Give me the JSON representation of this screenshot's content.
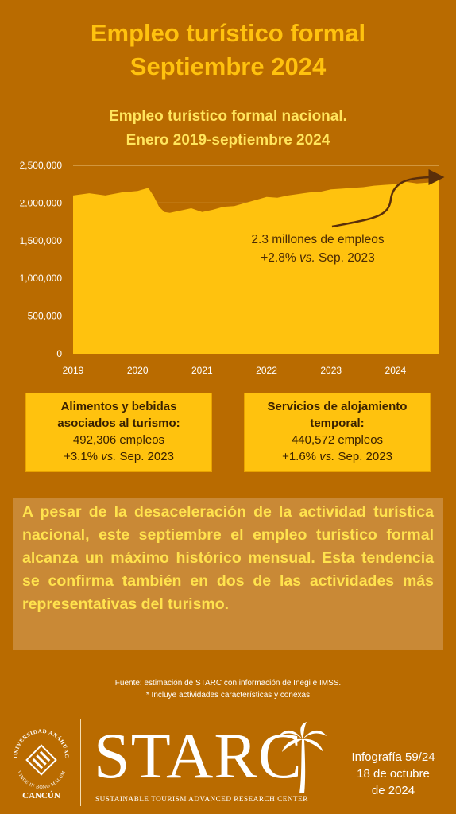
{
  "header": {
    "title_line1": "Empleo turístico formal",
    "title_line2": "Septiembre 2024"
  },
  "chart_data": {
    "type": "area",
    "title_line1": "Empleo turístico formal nacional.",
    "title_line2": "Enero 2019-septiembre 2024",
    "xlabel": "",
    "ylabel": "",
    "ylim": [
      0,
      2500000
    ],
    "y_ticks": [
      0,
      500000,
      1000000,
      1500000,
      2000000,
      2500000
    ],
    "y_tick_labels": [
      "0",
      "500,000",
      "1,000,000",
      "1,500,000",
      "2,000,000",
      "2,500,000"
    ],
    "x_tick_labels": [
      "2019",
      "2020",
      "2021",
      "2022",
      "2023",
      "2024"
    ],
    "grid": "horizontal",
    "color": "#FFC20E",
    "x": [
      "2019-01",
      "2019-04",
      "2019-07",
      "2019-10",
      "2020-01",
      "2020-03",
      "2020-04",
      "2020-05",
      "2020-06",
      "2020-07",
      "2020-09",
      "2020-11",
      "2021-01",
      "2021-03",
      "2021-05",
      "2021-07",
      "2021-09",
      "2021-11",
      "2022-01",
      "2022-03",
      "2022-05",
      "2022-07",
      "2022-09",
      "2022-11",
      "2023-01",
      "2023-03",
      "2023-05",
      "2023-07",
      "2023-09",
      "2023-11",
      "2024-01",
      "2024-03",
      "2024-05",
      "2024-07",
      "2024-09"
    ],
    "values": [
      2100000,
      2130000,
      2100000,
      2140000,
      2160000,
      2200000,
      2090000,
      1950000,
      1880000,
      1870000,
      1900000,
      1930000,
      1880000,
      1910000,
      1950000,
      1960000,
      2000000,
      2040000,
      2080000,
      2070000,
      2100000,
      2120000,
      2140000,
      2150000,
      2180000,
      2190000,
      2200000,
      2210000,
      2230000,
      2240000,
      2250000,
      2280000,
      2260000,
      2270000,
      2300000
    ],
    "annotation": {
      "line1": "2.3 millones de empleos",
      "line2_prefix": "+2.8% ",
      "line2_italic": "vs.",
      "line2_suffix": " Sep. 2023"
    }
  },
  "cards": [
    {
      "title_line1": "Alimentos  y bebidas",
      "title_line2": "asociados al turismo:",
      "value": "492,306 empleos",
      "change_prefix": "+3.1% ",
      "change_italic": "vs.",
      "change_suffix": " Sep. 2023"
    },
    {
      "title_line1": "Servicios de alojamiento",
      "title_line2": "temporal:",
      "value": "440,572 empleos",
      "change_prefix": "+1.6% ",
      "change_italic": "vs.",
      "change_suffix": " Sep. 2023"
    }
  ],
  "summary": "A pesar de la desaceleración de la actividad turística nacional, este septiembre el empleo turístico formal alcanza un máximo histórico mensual. Esta tendencia se confirma también en dos de las actividades más representativas del turismo.",
  "source": {
    "line1": "Fuente: estimación de STARC con información de Inegi e IMSS.",
    "line2": "* Incluye actividades características y conexas"
  },
  "footer": {
    "university_name": "UNIVERSIDAD ANÁHUAC",
    "university_motto": "VINCE IN BONO MALUM",
    "campus": "CANCÚN",
    "brand": "STARC",
    "brand_subtitle": "SUSTAINABLE TOURISM ADVANCED RESEARCH CENTER",
    "info_line1": "Infografía 59/24",
    "info_line2": "18 de octubre",
    "info_line3": "de 2024"
  }
}
